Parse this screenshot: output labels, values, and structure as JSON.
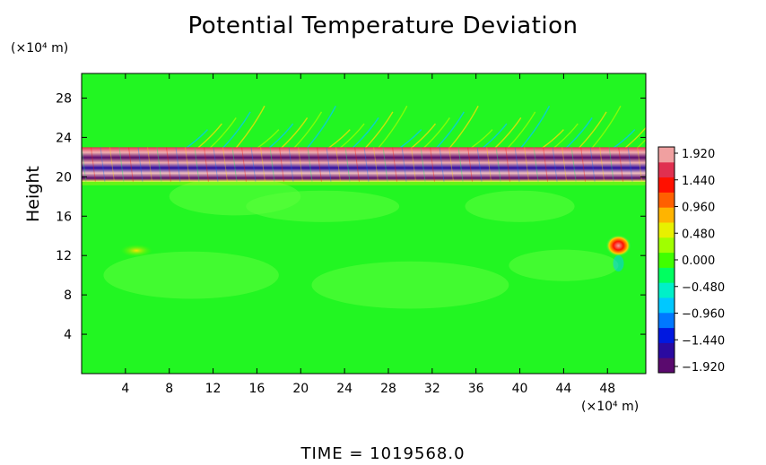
{
  "chart_data": {
    "type": "heatmap",
    "title": "Potential Temperature Deviation",
    "ylabel": "Height",
    "x_unit_label": "(×10⁴ m)",
    "y_unit_label": "(×10⁴ m)",
    "xlim": [
      0,
      51.5
    ],
    "ylim": [
      0,
      30.5
    ],
    "x_ticks": [
      4,
      8,
      12,
      16,
      20,
      24,
      28,
      32,
      36,
      40,
      44,
      48
    ],
    "y_ticks": [
      4,
      8,
      12,
      16,
      20,
      24,
      28
    ],
    "colorbar_ticks": [
      "1.920",
      "1.440",
      "0.960",
      "0.480",
      "0.000",
      "−0.480",
      "−0.960",
      "−1.440",
      "−1.920"
    ],
    "colorbar_range": [
      -1.92,
      1.92
    ],
    "colorbar_colors": [
      "#5a0a6e",
      "#2a0aa0",
      "#0018e0",
      "#0078ff",
      "#00c8ff",
      "#00f0c8",
      "#00ff60",
      "#40ff00",
      "#a0ff00",
      "#e8f000",
      "#ffb400",
      "#ff6000",
      "#ff1000",
      "#e03050",
      "#f0a0a0"
    ],
    "background_value": 0.0,
    "features": [
      {
        "description_value": "strong oscillating band",
        "x_range": [
          0,
          51.5
        ],
        "y_range": [
          19.5,
          23
        ],
        "amplitude": 1.92
      },
      {
        "description_value": "gravity wave field",
        "x_range": [
          8,
          51.5
        ],
        "y_range": [
          22,
          27
        ],
        "amplitude": 0.7
      },
      {
        "description_value": "warm anomaly",
        "x": 49,
        "y": 13,
        "value": 1.9
      },
      {
        "description_value": "weak warm patch",
        "x": 5,
        "y": 12.5,
        "value": 0.6
      }
    ]
  },
  "time_label": "TIME = 1019568.0"
}
